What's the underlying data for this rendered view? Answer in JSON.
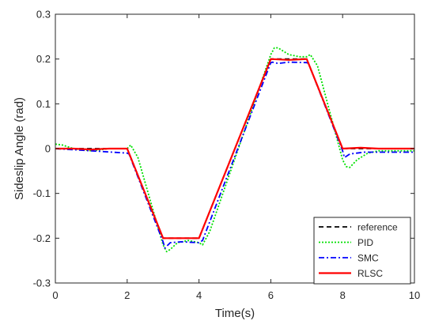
{
  "chart_data": {
    "type": "line",
    "xlabel": "Time(s)",
    "ylabel": "Sideslip Angle (rad)",
    "xlim": [
      0,
      10
    ],
    "ylim": [
      -0.3,
      0.3
    ],
    "xticks": [
      0,
      2,
      4,
      6,
      8,
      10
    ],
    "yticks": [
      -0.3,
      -0.2,
      -0.1,
      0,
      0.1,
      0.2,
      0.3
    ],
    "xtick_labels": [
      "0",
      "2",
      "4",
      "6",
      "8",
      "10"
    ],
    "ytick_labels": [
      "-0.3",
      "-0.2",
      "-0.1",
      "0",
      "0.1",
      "0.2",
      "0.3"
    ],
    "grid": false,
    "legend_position": "bottom-right",
    "series": [
      {
        "name": "reference",
        "color": "#000000",
        "style": "dashed",
        "x": [
          0,
          2,
          3,
          4,
          6,
          7,
          8,
          10
        ],
        "y": [
          0,
          0,
          -0.2,
          -0.2,
          0.2,
          0.2,
          0,
          0
        ]
      },
      {
        "name": "PID",
        "color": "#00e000",
        "style": "dotted",
        "x": [
          0,
          0.2,
          0.5,
          1.0,
          1.5,
          2.0,
          2.1,
          2.3,
          3.0,
          3.1,
          3.2,
          3.4,
          3.7,
          4.0,
          4.1,
          4.3,
          6.0,
          6.1,
          6.2,
          6.5,
          6.8,
          7.0,
          7.1,
          7.3,
          8.0,
          8.1,
          8.2,
          8.4,
          8.7,
          9.0,
          10.0
        ],
        "y": [
          0.01,
          0.008,
          0,
          -0.005,
          0,
          0,
          0.008,
          -0.02,
          -0.215,
          -0.23,
          -0.225,
          -0.21,
          -0.205,
          -0.21,
          -0.215,
          -0.185,
          0.21,
          0.225,
          0.225,
          0.21,
          0.205,
          0.205,
          0.21,
          0.185,
          -0.025,
          -0.04,
          -0.042,
          -0.025,
          -0.01,
          -0.005,
          -0.005
        ]
      },
      {
        "name": "SMC",
        "color": "#0000ff",
        "style": "dashdot",
        "x": [
          0,
          1.0,
          2.0,
          2.05,
          3.0,
          3.05,
          3.2,
          3.5,
          4.0,
          4.1,
          6.0,
          6.05,
          6.2,
          6.5,
          7.0,
          7.05,
          8.0,
          8.05,
          8.2,
          8.6,
          9.0,
          10.0
        ],
        "y": [
          0,
          -0.005,
          -0.01,
          -0.012,
          -0.208,
          -0.222,
          -0.21,
          -0.208,
          -0.21,
          -0.205,
          0.192,
          0.193,
          0.19,
          0.193,
          0.192,
          0.19,
          -0.005,
          -0.02,
          -0.012,
          -0.008,
          -0.008,
          -0.008
        ]
      },
      {
        "name": "RLSC",
        "color": "#ff0000",
        "style": "solid",
        "x": [
          0,
          0.5,
          1.0,
          1.5,
          2.0,
          3.0,
          3.5,
          4.0,
          6.0,
          6.5,
          7.0,
          8.0,
          8.5,
          9.0,
          10.0
        ],
        "y": [
          0,
          0,
          -0.002,
          0,
          0,
          -0.2,
          -0.2,
          -0.2,
          0.2,
          0.198,
          0.2,
          0,
          0.002,
          0,
          0
        ]
      }
    ]
  }
}
